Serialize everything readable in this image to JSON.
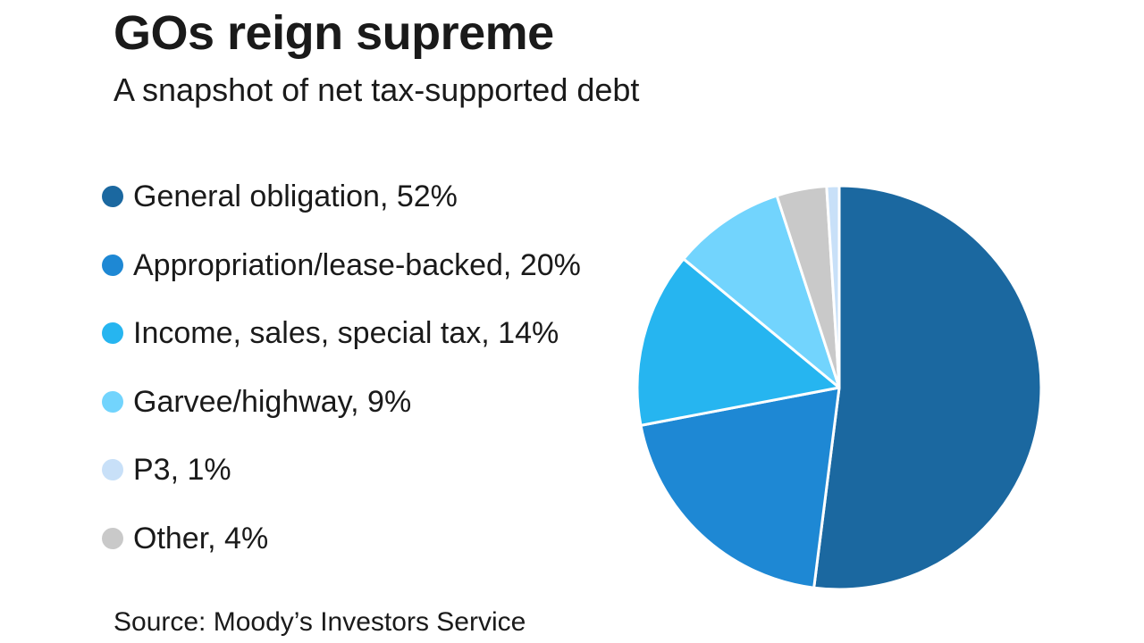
{
  "chart_data": {
    "type": "pie",
    "title": "GOs reign supreme",
    "subtitle": "A snapshot of net tax-supported debt",
    "source": "Source: Moody’s Investors Service",
    "legend_position": "left",
    "slices": [
      {
        "label": "General obligation, 52%",
        "value": 52,
        "color": "#1b68a0"
      },
      {
        "label": "Appropriation/lease-backed, 20%",
        "value": 20,
        "color": "#1e88d4"
      },
      {
        "label": "Income, sales, special tax, 14%",
        "value": 14,
        "color": "#26b5f0"
      },
      {
        "label": "Garvee/highway, 9%",
        "value": 9,
        "color": "#72d4fd"
      },
      {
        "label": "Other, 4%",
        "value": 4,
        "color": "#c9c9c9"
      },
      {
        "label": "P3, 1%",
        "value": 1,
        "color": "#c8e0f8"
      }
    ],
    "legend_order": [
      0,
      1,
      2,
      3,
      5,
      4
    ]
  }
}
